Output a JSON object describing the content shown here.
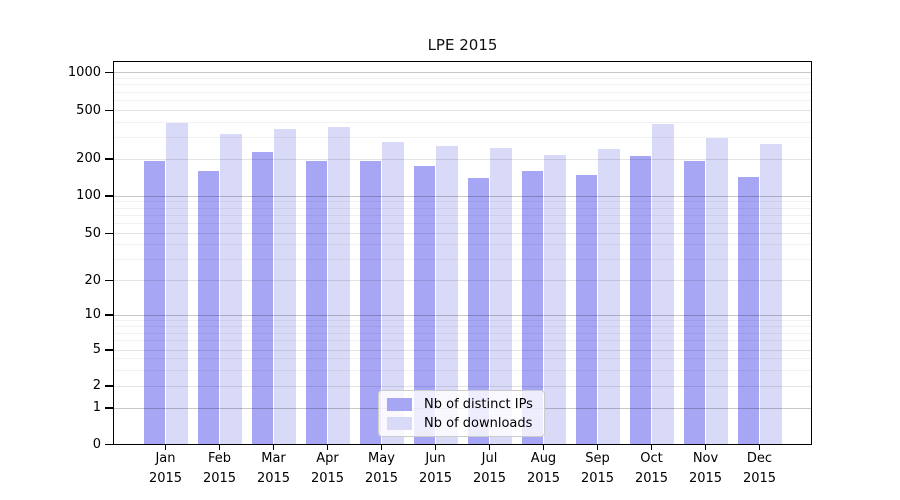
{
  "title": "LPE 2015",
  "chart_data": {
    "type": "bar",
    "title": "LPE 2015",
    "categories": [
      "Jan",
      "Feb",
      "Mar",
      "Apr",
      "May",
      "Jun",
      "Jul",
      "Aug",
      "Sep",
      "Oct",
      "Nov",
      "Dec"
    ],
    "category_year": "2015",
    "series": [
      {
        "name": "Nb of distinct IPs",
        "color": "#a6a6f5",
        "values": [
          193,
          160,
          230,
          193,
          192,
          175,
          139,
          159,
          147,
          210,
          194,
          142
        ]
      },
      {
        "name": "Nb of downloads",
        "color": "#d9d9f8",
        "values": [
          397,
          319,
          351,
          368,
          274,
          254,
          246,
          217,
          242,
          385,
          296,
          266
        ]
      }
    ],
    "yaxis": {
      "scale": "symlog",
      "tick_labels": [
        "0",
        "1",
        "2",
        "5",
        "10",
        "20",
        "50",
        "100",
        "200",
        "500",
        "1000"
      ],
      "range_top": 1000,
      "grid": true
    },
    "legend_position": "inside-bottom-center"
  },
  "legend": {
    "items": [
      {
        "label": "Nb of distinct IPs"
      },
      {
        "label": "Nb of downloads"
      }
    ]
  }
}
